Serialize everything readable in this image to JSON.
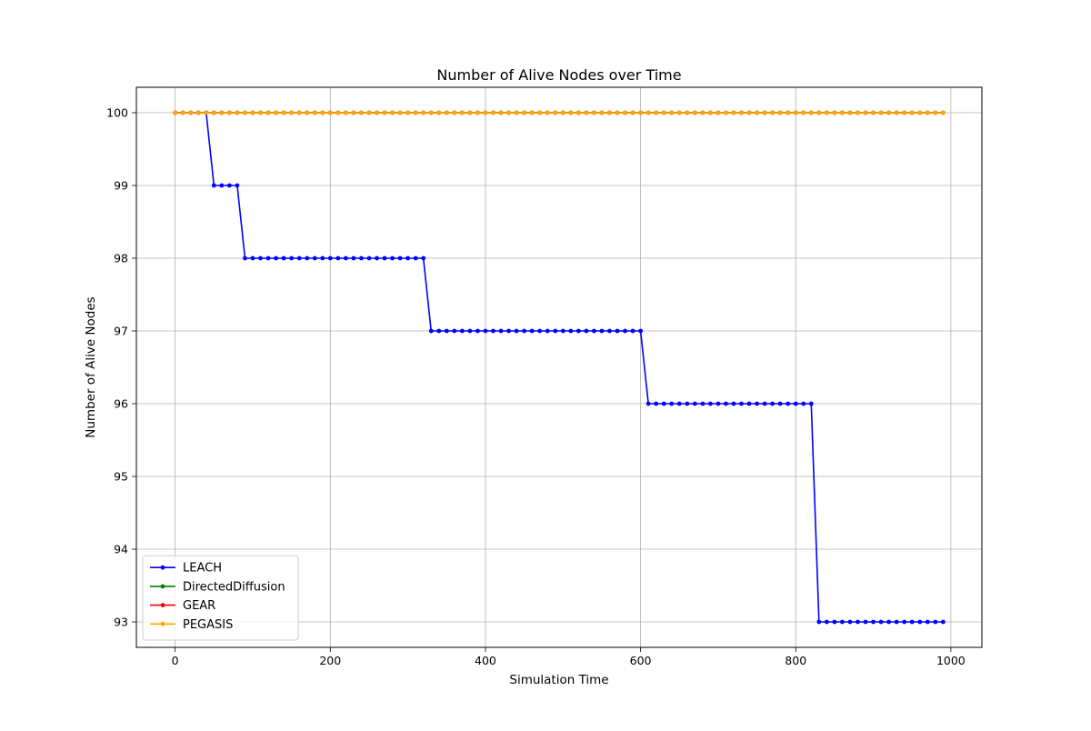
{
  "chart_data": {
    "type": "line",
    "title": "Number of Alive Nodes over Time",
    "xlabel": "Simulation Time",
    "ylabel": "Number of Alive Nodes",
    "xlim": [
      -50,
      1040
    ],
    "ylim": [
      92.65,
      100.35
    ],
    "xticks": [
      0,
      200,
      400,
      600,
      800,
      1000
    ],
    "yticks": [
      93,
      94,
      95,
      96,
      97,
      98,
      99,
      100
    ],
    "grid": true,
    "legend_position": "lower-left",
    "x_start": 0,
    "x_step": 10,
    "series": [
      {
        "name": "LEACH",
        "color": "#0000ff",
        "segments": [
          {
            "count": 5,
            "value": 100
          },
          {
            "count": 4,
            "value": 99
          },
          {
            "count": 24,
            "value": 98
          },
          {
            "count": 28,
            "value": 97
          },
          {
            "count": 22,
            "value": 96
          },
          {
            "count": 17,
            "value": 93
          }
        ]
      },
      {
        "name": "DirectedDiffusion",
        "color": "#008000",
        "segments": [
          {
            "count": 100,
            "value": 100
          }
        ]
      },
      {
        "name": "GEAR",
        "color": "#ff0000",
        "segments": [
          {
            "count": 100,
            "value": 100
          }
        ]
      },
      {
        "name": "PEGASIS",
        "color": "#ffa500",
        "segments": [
          {
            "count": 100,
            "value": 100
          }
        ]
      }
    ]
  }
}
